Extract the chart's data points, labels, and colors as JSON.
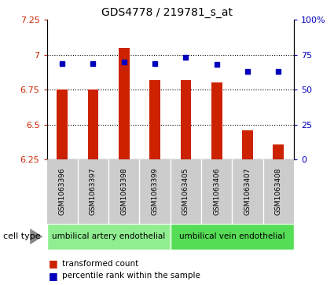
{
  "title": "GDS4778 / 219781_s_at",
  "samples": [
    "GSM1063396",
    "GSM1063397",
    "GSM1063398",
    "GSM1063399",
    "GSM1063405",
    "GSM1063406",
    "GSM1063407",
    "GSM1063408"
  ],
  "transformed_counts": [
    6.75,
    6.75,
    7.05,
    6.82,
    6.82,
    6.8,
    6.46,
    6.36
  ],
  "percentile_ranks": [
    69,
    69,
    70,
    69,
    73,
    68,
    63,
    63
  ],
  "ylim_left": [
    6.25,
    7.25
  ],
  "ylim_right": [
    0,
    100
  ],
  "yticks_left": [
    6.25,
    6.5,
    6.75,
    7.0,
    7.25
  ],
  "yticks_right": [
    0,
    25,
    50,
    75,
    100
  ],
  "ytick_labels_left": [
    "6.25",
    "6.5",
    "6.75",
    "7",
    "7.25"
  ],
  "ytick_labels_right": [
    "0",
    "25",
    "50",
    "75",
    "100%"
  ],
  "cell_type_groups": [
    {
      "label": "umbilical artery endothelial",
      "start": 0,
      "end": 3,
      "color": "#90EE90"
    },
    {
      "label": "umbilical vein endothelial",
      "start": 4,
      "end": 7,
      "color": "#55DD55"
    }
  ],
  "bar_color": "#CC2200",
  "dot_color": "#0000BB",
  "bar_bottom": 6.25,
  "tick_label_color_left": "#CC2200",
  "tick_label_color_right": "#0000BB",
  "cell_type_label": "cell type",
  "legend_bar_label": "transformed count",
  "legend_dot_label": "percentile rank within the sample",
  "sample_bg_color": "#CCCCCC",
  "title_fontsize": 10,
  "axis_fontsize": 8,
  "legend_fontsize": 8,
  "bar_width": 0.35
}
